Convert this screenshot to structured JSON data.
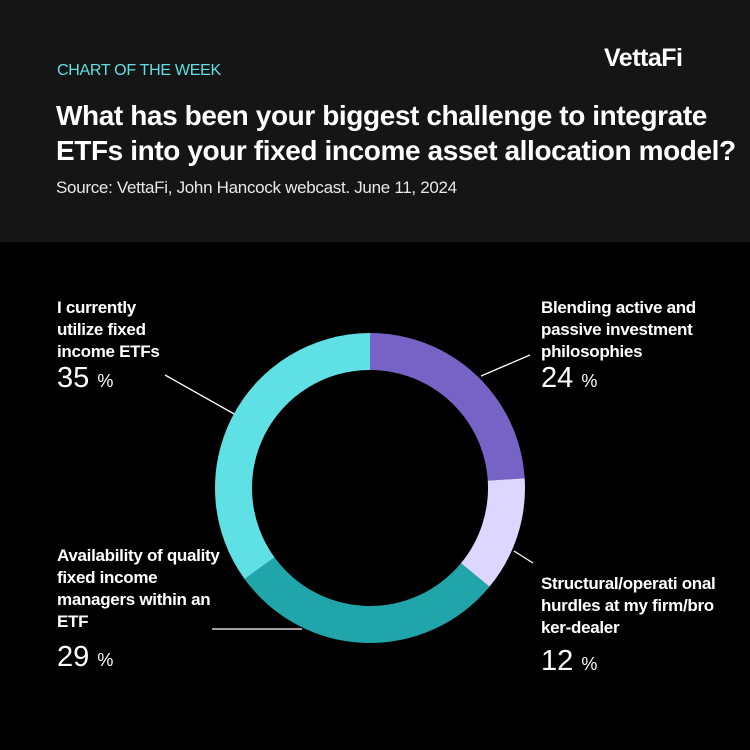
{
  "header": {
    "kicker": "CHART OF THE WEEK",
    "logo": "VettaFi",
    "title": "What has been your biggest challenge to integrate ETFs into your fixed income asset allocation model?",
    "source": "Source: VettaFi, John Hancock webcast. June 11, 2024"
  },
  "chart_data": {
    "type": "pie",
    "variant": "donut",
    "title": "What has been your biggest challenge to integrate ETFs into your fixed income asset allocation model?",
    "unit": "%",
    "slices": [
      {
        "label": "Blending active and passive investment philosophies",
        "value": 24,
        "color": "#7762c6"
      },
      {
        "label": "Structural/operational hurdles at my firm/broker-dealer",
        "value": 12,
        "color": "#ddd6ff"
      },
      {
        "label": "Availability of quality fixed income managers within an ETF",
        "value": 29,
        "color": "#1fa5aa"
      },
      {
        "label": "I currently utilize fixed income ETFs",
        "value": 35,
        "color": "#5ee0e4"
      }
    ]
  },
  "labels": [
    {
      "text": "Blending active and passive investment philosophies",
      "pct": "24",
      "unit": "%"
    },
    {
      "text": "Structural/operati onal hurdles at my firm/broker-dealer",
      "pct": "12",
      "unit": "%"
    },
    {
      "text": "Availability of quality fixed income managers within an ETF",
      "pct": "29",
      "unit": "%"
    },
    {
      "text": "I currently utilize fixed income ETFs",
      "pct": "35",
      "unit": "%"
    }
  ]
}
